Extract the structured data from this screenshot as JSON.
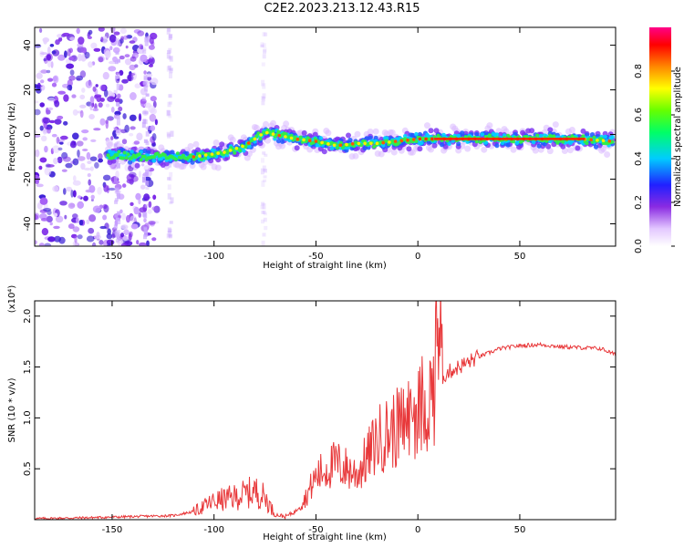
{
  "title": "C2E2.2023.213.12.43.R15",
  "colors": {
    "snr_line": "#e8383a",
    "axis": "#000000"
  },
  "chart_data": [
    {
      "type": "heatmap",
      "xlabel": "Height of straight line (km)",
      "ylabel": "Frequency (Hz)",
      "xlim": [
        -188,
        97
      ],
      "ylim": [
        -50,
        48
      ],
      "x_ticks": [
        "-150",
        "-100",
        "-50",
        "0",
        "50"
      ],
      "y_ticks": [
        "40",
        "20",
        "0",
        "-20",
        "-40"
      ],
      "colorbar": {
        "label": "Normalized spectral amplitude",
        "range": [
          0,
          1
        ],
        "ticks": [
          "0.0",
          "0.2",
          "0.4",
          "0.6",
          "0.8"
        ],
        "colormap": "rainbow (white-violet-blue-cyan-green-yellow-red-magenta)"
      },
      "ridge": {
        "x": [
          -150,
          -130,
          -110,
          -95,
          -85,
          -75,
          -60,
          -50,
          -40,
          -30,
          -20,
          -10,
          0,
          20,
          50,
          80,
          95
        ],
        "y": [
          -9,
          -10,
          -10,
          -8,
          -5,
          1,
          -2,
          -3,
          -5,
          -4,
          -4,
          -3,
          -2,
          -2,
          -2,
          -2,
          -3
        ]
      }
    },
    {
      "type": "line",
      "xlabel": "Height of straight line (km)",
      "ylabel": "SNR (10 * v/v)",
      "y_multiplier": "(x10⁴)",
      "xlim": [
        -188,
        97
      ],
      "ylim": [
        0,
        2.15
      ],
      "x_ticks": [
        "-150",
        "-100",
        "-50",
        "0",
        "50"
      ],
      "y_ticks": [
        "0.5",
        "1.0",
        "1.5",
        "2.0"
      ],
      "series": [
        {
          "color": "#e8383a",
          "x": [
            -188,
            -160,
            -140,
            -120,
            -110,
            -100,
            -90,
            -80,
            -75,
            -70,
            -65,
            -60,
            -55,
            -50,
            -45,
            -40,
            -35,
            -30,
            -25,
            -20,
            -15,
            -10,
            -5,
            0,
            5,
            8,
            10,
            12,
            15,
            20,
            25,
            30,
            40,
            50,
            60,
            70,
            80,
            90,
            97
          ],
          "y": [
            0.01,
            0.02,
            0.03,
            0.04,
            0.08,
            0.18,
            0.22,
            0.28,
            0.22,
            0.05,
            0.03,
            0.08,
            0.22,
            0.42,
            0.5,
            0.55,
            0.5,
            0.45,
            0.6,
            0.78,
            0.85,
            0.9,
            1.0,
            1.05,
            1.15,
            1.3,
            2.1,
            1.4,
            1.45,
            1.5,
            1.55,
            1.6,
            1.68,
            1.71,
            1.72,
            1.7,
            1.69,
            1.68,
            1.62
          ]
        }
      ]
    }
  ]
}
